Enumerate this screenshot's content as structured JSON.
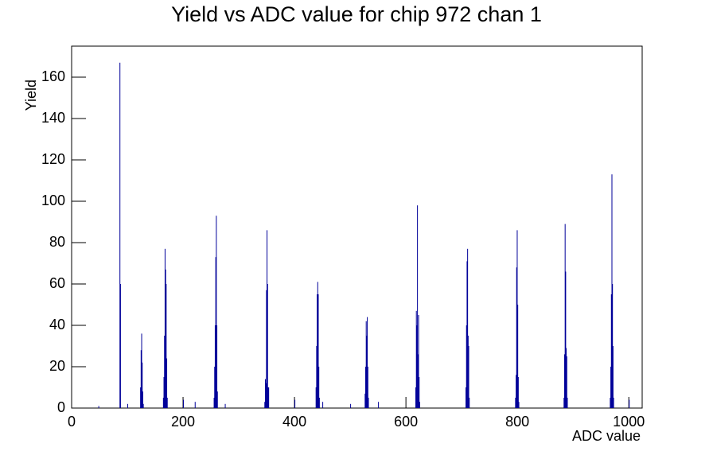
{
  "chart_data": {
    "type": "bar",
    "title": "Yield vs ADC value for chip 972 chan 1",
    "x_label": "ADC value",
    "y_label": "Yield",
    "color": "#000099",
    "xlim": [
      0,
      1024
    ],
    "ylim": [
      0,
      175
    ],
    "xticks": [
      0,
      200,
      400,
      600,
      800,
      1000
    ],
    "yticks": [
      0,
      20,
      40,
      60,
      80,
      100,
      120,
      140,
      160
    ],
    "x": [
      48,
      86,
      87,
      100,
      123,
      124,
      125,
      126,
      127,
      128,
      164,
      165,
      166,
      167,
      168,
      169,
      170,
      171,
      200,
      221,
      255,
      256,
      257,
      258,
      259,
      260,
      261,
      275,
      346,
      347,
      348,
      349,
      350,
      351,
      352,
      353,
      400,
      438,
      439,
      440,
      441,
      442,
      443,
      444,
      450,
      500,
      526,
      527,
      528,
      529,
      530,
      531,
      532,
      550,
      617,
      618,
      619,
      620,
      621,
      622,
      623,
      624,
      707,
      708,
      709,
      710,
      711,
      712,
      713,
      796,
      797,
      798,
      799,
      800,
      801,
      802,
      883,
      884,
      885,
      886,
      887,
      888,
      889,
      966,
      967,
      968,
      969,
      970,
      971,
      972,
      1000
    ],
    "values": [
      1,
      167,
      60,
      2,
      10,
      28,
      36,
      22,
      8,
      2,
      5,
      15,
      35,
      77,
      67,
      60,
      24,
      5,
      4,
      3,
      5,
      20,
      40,
      73,
      93,
      40,
      8,
      2,
      3,
      14,
      12,
      57,
      86,
      60,
      10,
      10,
      4,
      10,
      30,
      55,
      61,
      55,
      20,
      5,
      3,
      2,
      7,
      20,
      42,
      35,
      44,
      20,
      5,
      3,
      10,
      47,
      40,
      98,
      26,
      45,
      15,
      3,
      10,
      40,
      71,
      77,
      35,
      30,
      5,
      5,
      16,
      68,
      86,
      50,
      15,
      3,
      5,
      26,
      89,
      66,
      29,
      25,
      5,
      5,
      20,
      55,
      113,
      60,
      30,
      5,
      4
    ]
  }
}
